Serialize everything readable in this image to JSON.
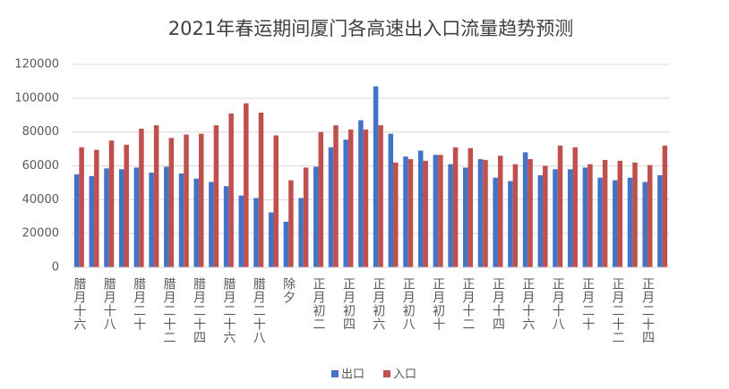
{
  "chart_data": {
    "type": "bar",
    "title": "2021年春运期间厦门各高速出入口流量趋势预测",
    "categories": [
      "腊月十六",
      null,
      "腊月十八",
      null,
      "腊月二十",
      null,
      "腊月二十二",
      null,
      "腊月二十四",
      null,
      "腊月二十六",
      null,
      "腊月二十八",
      null,
      "除夕",
      null,
      "正月初二",
      null,
      "正月初四",
      null,
      "正月初六",
      null,
      "正月初八",
      null,
      "正月初十",
      null,
      "正月十二",
      null,
      "正月十四",
      null,
      "正月十六",
      null,
      "正月十八",
      null,
      "正月二十",
      null,
      "正月二十二",
      null,
      "正月二十四",
      null
    ],
    "series": [
      {
        "name": "出口",
        "color": "#4472c4",
        "values": [
          55000,
          54000,
          58500,
          58000,
          59000,
          56000,
          59500,
          55500,
          52500,
          50500,
          48000,
          42500,
          41000,
          32500,
          27000,
          41000,
          59500,
          71000,
          75500,
          87000,
          107000,
          79000,
          65500,
          69000,
          66500,
          61000,
          59000,
          64000,
          53000,
          51000,
          68000,
          54500,
          58000,
          58000,
          59000,
          53000,
          51500,
          53000,
          50500,
          54500
        ]
      },
      {
        "name": "入口",
        "color": "#c0504d",
        "values": [
          71000,
          69500,
          75000,
          72500,
          82000,
          84000,
          76500,
          78500,
          79000,
          84000,
          91000,
          97000,
          91500,
          78000,
          51500,
          59000,
          80000,
          84000,
          81500,
          81500,
          84000,
          62000,
          64000,
          63000,
          66500,
          71000,
          70500,
          63500,
          66000,
          61000,
          64000,
          60000,
          72000,
          71000,
          61000,
          63500,
          63000,
          62000,
          60500,
          72000
        ]
      }
    ],
    "ylim": [
      0,
      120000
    ],
    "yticks": [
      0,
      20000,
      40000,
      60000,
      80000,
      100000,
      120000
    ],
    "grid": true,
    "legend": "bottom"
  }
}
